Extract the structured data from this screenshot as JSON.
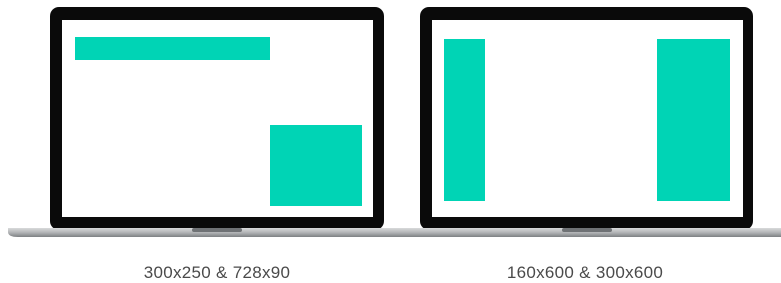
{
  "laptops": [
    {
      "caption": "300x250 & 728x90"
    },
    {
      "caption": "160x600 & 300x600"
    }
  ]
}
